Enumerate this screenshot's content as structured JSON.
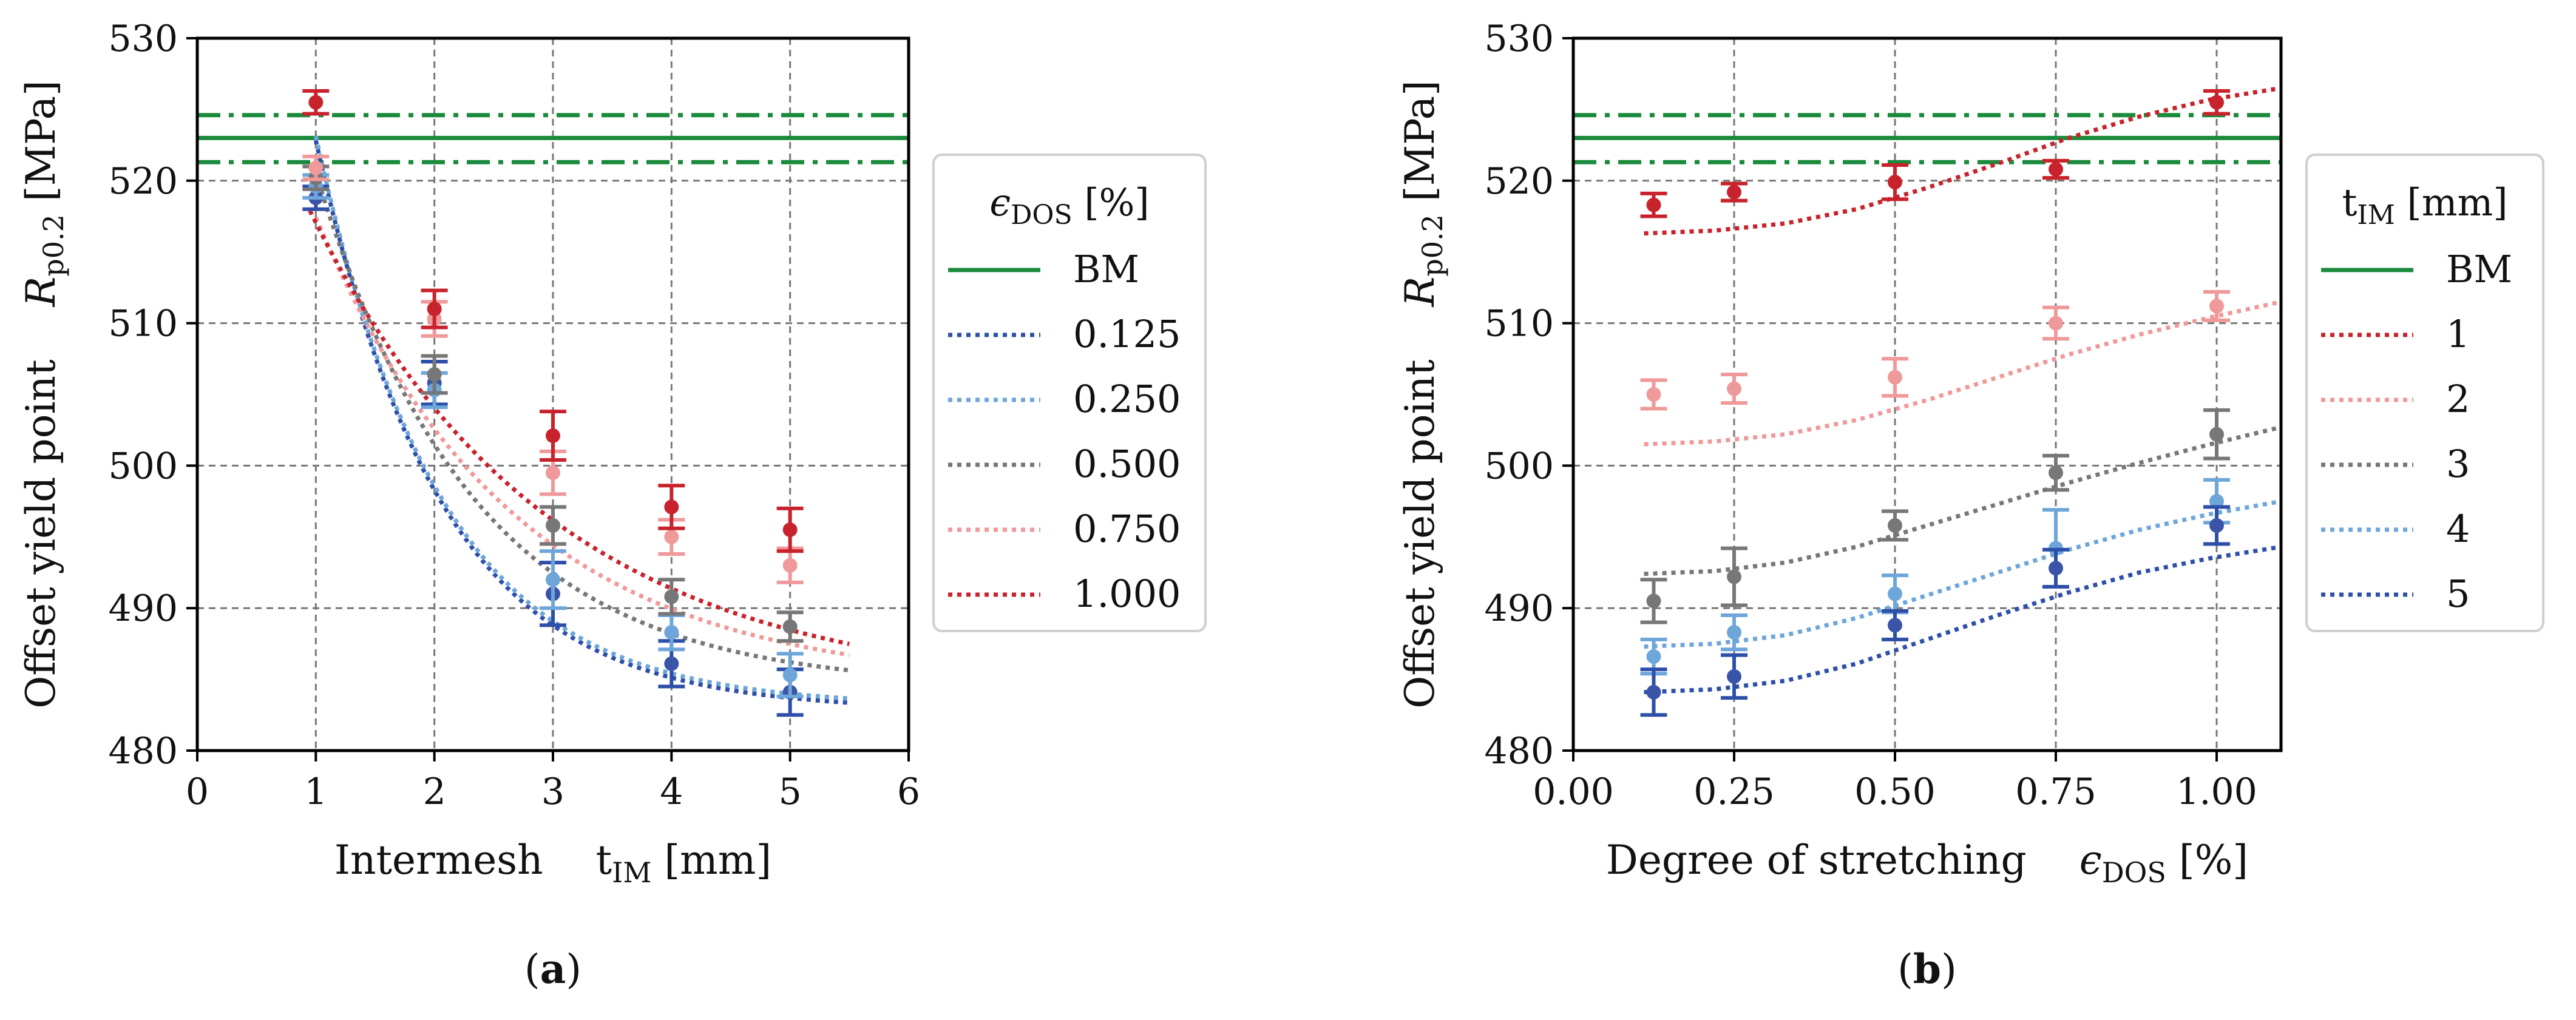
{
  "chart_data": [
    {
      "type": "scatter",
      "panel": "a",
      "caption": {
        "open": "(",
        "letter": "a",
        "close": ")"
      },
      "xlabel": {
        "text": "Intermesh",
        "sym": "t",
        "sub": "IM",
        "unit": "[mm]"
      },
      "ylabel": {
        "text": "Offset yield point",
        "sym": "R",
        "sub": "p0.2",
        "unit": "[MPa]"
      },
      "xlim": [
        0,
        6
      ],
      "ylim": [
        480,
        530
      ],
      "xticks": [
        0,
        1,
        2,
        3,
        4,
        5,
        6
      ],
      "xtick_labels": [
        "0",
        "1",
        "2",
        "3",
        "4",
        "5",
        "6"
      ],
      "yticks": [
        480,
        490,
        500,
        510,
        520,
        530
      ],
      "ytick_labels": [
        "480",
        "490",
        "500",
        "510",
        "520",
        "530"
      ],
      "grid": true,
      "legend": {
        "placement": "outside-right",
        "title": {
          "sym": "ϵ",
          "sub": "DOS",
          "unit": "[%]"
        }
      },
      "reference": {
        "name": "BM",
        "mean": 523,
        "band": [
          521.3,
          524.6
        ],
        "color": "#1a8a3c"
      },
      "series": [
        {
          "name": "0.125",
          "color": "#2d4fa8",
          "marker_color": "#3a55a8",
          "x": [
            1,
            2,
            3,
            4,
            5
          ],
          "y": [
            518.8,
            505.8,
            491.0,
            486.1,
            484.1
          ],
          "err": [
            0.8,
            1.5,
            2.2,
            1.6,
            1.6
          ],
          "fit": {
            "x0": 1.0,
            "x1": 5.5,
            "c": 482.8,
            "a": 103.5,
            "k": 0.95
          }
        },
        {
          "name": "0.250",
          "color": "#6ea6da",
          "marker_color": "#6ea6da",
          "x": [
            1,
            2,
            3,
            4,
            5
          ],
          "y": [
            519.6,
            505.3,
            492.0,
            488.3,
            485.3
          ],
          "err": [
            0.8,
            1.2,
            2.0,
            1.2,
            1.5
          ],
          "fit": {
            "x0": 1.0,
            "x1": 5.5,
            "c": 483.1,
            "a": 103.5,
            "k": 0.95
          }
        },
        {
          "name": "0.500",
          "color": "#777777",
          "marker_color": "#777777",
          "x": [
            1,
            2,
            3,
            4,
            5
          ],
          "y": [
            520.2,
            506.4,
            495.8,
            490.8,
            488.7
          ],
          "err": [
            0.8,
            1.3,
            1.3,
            1.2,
            1.0
          ],
          "fit": {
            "x0": 1.0,
            "x1": 5.5,
            "c": 484.4,
            "a": 76.5,
            "k": 0.75
          }
        },
        {
          "name": "0.750",
          "color": "#f0999a",
          "marker_color": "#f0999a",
          "x": [
            1,
            2,
            3,
            4,
            5
          ],
          "y": [
            520.9,
            510.3,
            499.5,
            495.0,
            493.0
          ],
          "err": [
            0.8,
            1.2,
            1.5,
            1.2,
            1.2
          ],
          "fit": {
            "x0": 1.0,
            "x1": 5.5,
            "c": 484.5,
            "a": 60.0,
            "k": 0.6
          }
        },
        {
          "name": "1.000",
          "color": "#c8232c",
          "marker_color": "#c8232c",
          "x": [
            1,
            2,
            3,
            4,
            5
          ],
          "y": [
            525.5,
            511.0,
            502.1,
            497.1,
            495.5
          ],
          "err": [
            0.8,
            1.3,
            1.7,
            1.5,
            1.5
          ],
          "fit": {
            "x0": 0.95,
            "x1": 5.5,
            "c": 484.0,
            "a": 54.5,
            "k": 0.5
          }
        }
      ]
    },
    {
      "type": "scatter",
      "panel": "b",
      "caption": {
        "open": "(",
        "letter": "b",
        "close": ")"
      },
      "xlabel": {
        "text": "Degree of stretching",
        "sym": "ϵ",
        "sub": "DOS",
        "unit": "[%]"
      },
      "ylabel": {
        "text": "Offset yield point",
        "sym": "R",
        "sub": "p0.2",
        "unit": "[MPa]"
      },
      "xlim": [
        0,
        1.1
      ],
      "ylim": [
        480,
        530
      ],
      "xticks": [
        0,
        0.25,
        0.5,
        0.75,
        1.0
      ],
      "xtick_labels": [
        "0.00",
        "0.25",
        "0.50",
        "0.75",
        "1.00"
      ],
      "yticks": [
        480,
        490,
        500,
        510,
        520,
        530
      ],
      "ytick_labels": [
        "480",
        "490",
        "500",
        "510",
        "520",
        "530"
      ],
      "grid": true,
      "legend": {
        "placement": "outside-right",
        "title": {
          "sym": "t",
          "sub": "IM",
          "unit": "[mm]"
        }
      },
      "reference": {
        "name": "BM",
        "mean": 523,
        "band": [
          521.3,
          524.6
        ],
        "color": "#1a8a3c"
      },
      "series": [
        {
          "name": "1",
          "color": "#c8232c",
          "marker_color": "#c8232c",
          "x": [
            0.125,
            0.25,
            0.5,
            0.75,
            1.0
          ],
          "y": [
            518.3,
            519.2,
            519.9,
            520.8,
            525.5
          ],
          "err": [
            0.8,
            0.6,
            1.2,
            0.6,
            0.8
          ],
          "fit": {
            "x0": 0.11,
            "x1": 1.1,
            "y": [
              516.3,
              516.5,
              517.0,
              518.0,
              519.5,
              521.2,
              523.0,
              524.5,
              525.7,
              526.5
            ]
          }
        },
        {
          "name": "2",
          "color": "#f0999a",
          "marker_color": "#f0999a",
          "x": [
            0.125,
            0.25,
            0.5,
            0.75,
            1.0
          ],
          "y": [
            505.0,
            505.4,
            506.2,
            510.0,
            511.2
          ],
          "err": [
            1.0,
            1.0,
            1.3,
            1.1,
            1.0
          ],
          "fit": {
            "x0": 0.11,
            "x1": 1.1,
            "y": [
              501.5,
              501.7,
              502.2,
              503.2,
              504.6,
              506.2,
              507.8,
              509.2,
              510.4,
              511.5
            ]
          }
        },
        {
          "name": "3",
          "color": "#777777",
          "marker_color": "#777777",
          "x": [
            0.125,
            0.25,
            0.5,
            0.75,
            1.0
          ],
          "y": [
            490.5,
            492.2,
            495.8,
            499.5,
            502.2
          ],
          "err": [
            1.5,
            2.0,
            1.0,
            1.2,
            1.7
          ],
          "fit": {
            "x0": 0.11,
            "x1": 1.1,
            "y": [
              492.4,
              492.6,
              493.2,
              494.3,
              495.8,
              497.3,
              498.8,
              500.2,
              501.5,
              502.7
            ]
          }
        },
        {
          "name": "4",
          "color": "#6ea6da",
          "marker_color": "#6ea6da",
          "x": [
            0.125,
            0.25,
            0.5,
            0.75,
            1.0
          ],
          "y": [
            486.6,
            488.3,
            491.0,
            494.2,
            497.5
          ],
          "err": [
            1.2,
            1.2,
            1.3,
            2.7,
            1.5
          ],
          "fit": {
            "x0": 0.11,
            "x1": 1.1,
            "y": [
              487.3,
              487.5,
              488.1,
              489.3,
              490.9,
              492.5,
              494.1,
              495.5,
              496.6,
              497.5
            ]
          }
        },
        {
          "name": "5",
          "color": "#2d4fa8",
          "marker_color": "#3a55a8",
          "x": [
            0.125,
            0.25,
            0.5,
            0.75,
            1.0
          ],
          "y": [
            484.1,
            485.2,
            488.8,
            492.8,
            495.8
          ],
          "err": [
            1.6,
            1.5,
            1.0,
            1.3,
            1.3
          ],
          "fit": {
            "x0": 0.11,
            "x1": 1.1,
            "y": [
              484.1,
              484.3,
              484.9,
              486.1,
              487.8,
              489.5,
              491.1,
              492.5,
              493.5,
              494.3
            ]
          }
        }
      ]
    }
  ]
}
